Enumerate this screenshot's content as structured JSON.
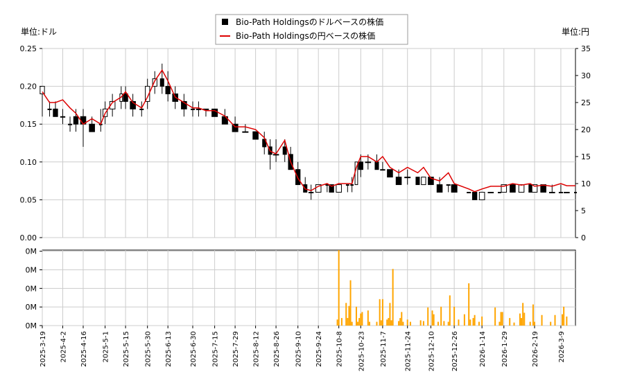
{
  "chart_data": [
    {
      "type": "candlestick+line",
      "legend": {
        "placement": "top-center",
        "entries": [
          {
            "label": "Bio-Path Holdingsのドルベースの株価",
            "color": "#000000",
            "marker": "square"
          },
          {
            "label": "Bio-Path Holdingsの円ベースの株価",
            "color": "#dd0000",
            "marker": "line"
          }
        ]
      },
      "left_axis": {
        "unit_label": "単位:ドル",
        "ylim": [
          0,
          0.25
        ],
        "ticks": [
          "0.00",
          "0.05",
          "0.10",
          "0.15",
          "0.20",
          "0.25"
        ]
      },
      "right_axis": {
        "unit_label": "単位:円",
        "ylim": [
          0,
          35
        ],
        "ticks": [
          "0",
          "5",
          "10",
          "15",
          "20",
          "25",
          "30",
          "35"
        ]
      },
      "grid": true,
      "x_range": [
        "2025-03-19",
        "2026-03-19"
      ],
      "x_ticks": [
        "2025-3-19",
        "2025-4-2",
        "2025-4-16",
        "2025-5-1",
        "2025-5-15",
        "2025-5-30",
        "2025-6-13",
        "2025-6-30",
        "2025-7-15",
        "2025-7-29",
        "2025-8-12",
        "2025-8-26",
        "2025-9-10",
        "2025-9-24",
        "2025-10-8",
        "2025-10-23",
        "2025-11-7",
        "2025-11-24",
        "2025-12-10",
        "2025-12-26",
        "2026-1-14",
        "2026-1-29",
        "2026-2-19",
        "2026-3-9"
      ],
      "usd_series": [
        [
          "2025-03-19",
          0.19,
          0.2,
          0.16,
          0.2
        ],
        [
          "2025-03-24",
          0.17,
          0.18,
          0.16,
          0.17
        ],
        [
          "2025-03-28",
          0.17,
          0.18,
          0.16,
          0.16
        ],
        [
          "2025-04-02",
          0.16,
          0.17,
          0.15,
          0.16
        ],
        [
          "2025-04-07",
          0.15,
          0.16,
          0.14,
          0.15
        ],
        [
          "2025-04-11",
          0.16,
          0.17,
          0.14,
          0.15
        ],
        [
          "2025-04-16",
          0.16,
          0.17,
          0.12,
          0.15
        ],
        [
          "2025-04-22",
          0.15,
          0.16,
          0.14,
          0.14
        ],
        [
          "2025-04-28",
          0.15,
          0.17,
          0.14,
          0.15
        ],
        [
          "2025-05-01",
          0.16,
          0.18,
          0.15,
          0.17
        ],
        [
          "2025-05-06",
          0.17,
          0.19,
          0.16,
          0.18
        ],
        [
          "2025-05-12",
          0.18,
          0.2,
          0.17,
          0.19
        ],
        [
          "2025-05-15",
          0.19,
          0.2,
          0.17,
          0.18
        ],
        [
          "2025-05-20",
          0.18,
          0.19,
          0.16,
          0.17
        ],
        [
          "2025-05-26",
          0.17,
          0.18,
          0.16,
          0.17
        ],
        [
          "2025-05-30",
          0.18,
          0.21,
          0.17,
          0.2
        ],
        [
          "2025-06-04",
          0.2,
          0.22,
          0.19,
          0.21
        ],
        [
          "2025-06-09",
          0.21,
          0.23,
          0.19,
          0.2
        ],
        [
          "2025-06-13",
          0.2,
          0.22,
          0.18,
          0.19
        ],
        [
          "2025-06-18",
          0.19,
          0.2,
          0.17,
          0.18
        ],
        [
          "2025-06-24",
          0.18,
          0.19,
          0.16,
          0.17
        ],
        [
          "2025-06-30",
          0.17,
          0.18,
          0.16,
          0.17
        ],
        [
          "2025-07-04",
          0.17,
          0.18,
          0.16,
          0.17
        ],
        [
          "2025-07-09",
          0.17,
          0.17,
          0.16,
          0.17
        ],
        [
          "2025-07-15",
          0.17,
          0.17,
          0.16,
          0.16
        ],
        [
          "2025-07-22",
          0.16,
          0.17,
          0.15,
          0.15
        ],
        [
          "2025-07-29",
          0.15,
          0.16,
          0.14,
          0.14
        ],
        [
          "2025-08-05",
          0.14,
          0.15,
          0.14,
          0.14
        ],
        [
          "2025-08-12",
          0.14,
          0.14,
          0.13,
          0.13
        ],
        [
          "2025-08-18",
          0.13,
          0.14,
          0.11,
          0.12
        ],
        [
          "2025-08-22",
          0.12,
          0.13,
          0.09,
          0.11
        ],
        [
          "2025-08-26",
          0.11,
          0.13,
          0.1,
          0.11
        ],
        [
          "2025-09-01",
          0.12,
          0.13,
          0.1,
          0.11
        ],
        [
          "2025-09-05",
          0.11,
          0.12,
          0.09,
          0.09
        ],
        [
          "2025-09-10",
          0.09,
          0.1,
          0.07,
          0.07
        ],
        [
          "2025-09-15",
          0.07,
          0.08,
          0.06,
          0.06
        ],
        [
          "2025-09-19",
          0.06,
          0.07,
          0.05,
          0.06
        ],
        [
          "2025-09-24",
          0.06,
          0.07,
          0.06,
          0.07
        ],
        [
          "2025-09-30",
          0.07,
          0.07,
          0.06,
          0.07
        ],
        [
          "2025-10-03",
          0.07,
          0.07,
          0.06,
          0.06
        ],
        [
          "2025-10-08",
          0.06,
          0.07,
          0.06,
          0.07
        ],
        [
          "2025-10-14",
          0.07,
          0.07,
          0.06,
          0.07
        ],
        [
          "2025-10-17",
          0.07,
          0.08,
          0.06,
          0.07
        ],
        [
          "2025-10-20",
          0.07,
          0.1,
          0.07,
          0.1
        ],
        [
          "2025-10-23",
          0.1,
          0.11,
          0.08,
          0.09
        ],
        [
          "2025-10-28",
          0.1,
          0.11,
          0.09,
          0.1
        ],
        [
          "2025-11-03",
          0.1,
          0.11,
          0.09,
          0.09
        ],
        [
          "2025-11-07",
          0.09,
          0.1,
          0.09,
          0.09
        ],
        [
          "2025-11-12",
          0.09,
          0.09,
          0.08,
          0.08
        ],
        [
          "2025-11-18",
          0.08,
          0.09,
          0.07,
          0.07
        ],
        [
          "2025-11-24",
          0.08,
          0.09,
          0.07,
          0.08
        ],
        [
          "2025-12-01",
          0.08,
          0.08,
          0.07,
          0.07
        ],
        [
          "2025-12-05",
          0.07,
          0.08,
          0.07,
          0.08
        ],
        [
          "2025-12-10",
          0.08,
          0.08,
          0.07,
          0.07
        ],
        [
          "2025-12-16",
          0.07,
          0.08,
          0.06,
          0.06
        ],
        [
          "2025-12-22",
          0.07,
          0.07,
          0.06,
          0.07
        ],
        [
          "2025-12-26",
          0.07,
          0.07,
          0.06,
          0.06
        ],
        [
          "2026-01-05",
          0.06,
          0.06,
          0.06,
          0.06
        ],
        [
          "2026-01-09",
          0.06,
          0.06,
          0.05,
          0.05
        ],
        [
          "2026-01-14",
          0.05,
          0.06,
          0.05,
          0.06
        ],
        [
          "2026-01-20",
          0.06,
          0.06,
          0.06,
          0.06
        ],
        [
          "2026-01-26",
          0.06,
          0.06,
          0.06,
          0.06
        ],
        [
          "2026-01-29",
          0.06,
          0.07,
          0.06,
          0.07
        ],
        [
          "2026-02-04",
          0.07,
          0.07,
          0.06,
          0.06
        ],
        [
          "2026-02-10",
          0.06,
          0.07,
          0.06,
          0.07
        ],
        [
          "2026-02-16",
          0.07,
          0.07,
          0.06,
          0.06
        ],
        [
          "2026-02-19",
          0.06,
          0.07,
          0.06,
          0.07
        ],
        [
          "2026-02-25",
          0.07,
          0.07,
          0.06,
          0.06
        ],
        [
          "2026-03-03",
          0.06,
          0.07,
          0.06,
          0.06
        ],
        [
          "2026-03-09",
          0.06,
          0.07,
          0.06,
          0.06
        ],
        [
          "2026-03-13",
          0.06,
          0.06,
          0.06,
          0.06
        ],
        [
          "2026-03-19",
          0.06,
          0.06,
          0.06,
          0.06
        ]
      ],
      "jpy_series": [
        [
          "2025-03-19",
          27
        ],
        [
          "2025-03-24",
          25
        ],
        [
          "2025-03-28",
          25
        ],
        [
          "2025-04-02",
          25.5
        ],
        [
          "2025-04-07",
          24
        ],
        [
          "2025-04-11",
          23
        ],
        [
          "2025-04-16",
          21
        ],
        [
          "2025-04-22",
          22
        ],
        [
          "2025-04-28",
          21
        ],
        [
          "2025-05-01",
          23
        ],
        [
          "2025-05-06",
          25
        ],
        [
          "2025-05-12",
          26
        ],
        [
          "2025-05-15",
          27
        ],
        [
          "2025-05-20",
          25
        ],
        [
          "2025-05-26",
          24
        ],
        [
          "2025-05-30",
          26
        ],
        [
          "2025-06-04",
          29
        ],
        [
          "2025-06-09",
          31
        ],
        [
          "2025-06-13",
          29
        ],
        [
          "2025-06-18",
          26
        ],
        [
          "2025-06-24",
          25
        ],
        [
          "2025-06-30",
          24
        ],
        [
          "2025-07-04",
          24
        ],
        [
          "2025-07-09",
          23.5
        ],
        [
          "2025-07-15",
          23.5
        ],
        [
          "2025-07-22",
          22.5
        ],
        [
          "2025-07-29",
          20.5
        ],
        [
          "2025-08-05",
          20.5
        ],
        [
          "2025-08-12",
          20
        ],
        [
          "2025-08-18",
          18.5
        ],
        [
          "2025-08-22",
          16
        ],
        [
          "2025-08-26",
          15.5
        ],
        [
          "2025-09-01",
          18
        ],
        [
          "2025-09-05",
          14
        ],
        [
          "2025-09-10",
          11
        ],
        [
          "2025-09-15",
          9
        ],
        [
          "2025-09-19",
          8.7
        ],
        [
          "2025-09-24",
          9.5
        ],
        [
          "2025-09-30",
          10
        ],
        [
          "2025-10-03",
          9.5
        ],
        [
          "2025-10-08",
          10
        ],
        [
          "2025-10-14",
          10
        ],
        [
          "2025-10-17",
          10
        ],
        [
          "2025-10-20",
          13
        ],
        [
          "2025-10-23",
          15
        ],
        [
          "2025-10-28",
          15
        ],
        [
          "2025-11-03",
          14
        ],
        [
          "2025-11-07",
          15
        ],
        [
          "2025-11-12",
          13
        ],
        [
          "2025-11-18",
          12
        ],
        [
          "2025-11-24",
          13
        ],
        [
          "2025-12-01",
          12
        ],
        [
          "2025-12-05",
          13
        ],
        [
          "2025-12-10",
          11
        ],
        [
          "2025-12-16",
          10.5
        ],
        [
          "2025-12-22",
          12
        ],
        [
          "2025-12-26",
          10
        ],
        [
          "2026-01-05",
          9
        ],
        [
          "2026-01-09",
          8.5
        ],
        [
          "2026-01-14",
          9
        ],
        [
          "2026-01-20",
          9.5
        ],
        [
          "2026-01-26",
          9.5
        ],
        [
          "2026-01-29",
          9.5
        ],
        [
          "2026-02-04",
          10
        ],
        [
          "2026-02-10",
          9.7
        ],
        [
          "2026-02-16",
          10
        ],
        [
          "2026-02-19",
          9.5
        ],
        [
          "2026-02-25",
          9.7
        ],
        [
          "2026-03-03",
          9.5
        ],
        [
          "2026-03-09",
          10
        ],
        [
          "2026-03-13",
          9.6
        ],
        [
          "2026-03-19",
          9.6
        ]
      ],
      "line_color": "#dd0000",
      "candle_color": "#000000"
    },
    {
      "type": "bar",
      "title": "",
      "ylim": [
        0,
        1
      ],
      "y_ticks": [
        "0M",
        "0M",
        "0M",
        "0M",
        "0M"
      ],
      "bar_color": "#ffa500",
      "grid": true,
      "volumes": [
        [
          "2025-10-07",
          0.08
        ],
        [
          "2025-10-08",
          1.0
        ],
        [
          "2025-10-10",
          0.1
        ],
        [
          "2025-10-13",
          0.3
        ],
        [
          "2025-10-14",
          0.1
        ],
        [
          "2025-10-15",
          0.26
        ],
        [
          "2025-10-16",
          0.6
        ],
        [
          "2025-10-17",
          0.05
        ],
        [
          "2025-10-20",
          0.25
        ],
        [
          "2025-10-21",
          0.05
        ],
        [
          "2025-10-22",
          0.1
        ],
        [
          "2025-10-23",
          0.16
        ],
        [
          "2025-10-24",
          0.18
        ],
        [
          "2025-10-28",
          0.2
        ],
        [
          "2025-10-29",
          0.05
        ],
        [
          "2025-11-03",
          0.05
        ],
        [
          "2025-11-05",
          0.35
        ],
        [
          "2025-11-06",
          0.07
        ],
        [
          "2025-11-07",
          0.35
        ],
        [
          "2025-11-10",
          0.08
        ],
        [
          "2025-11-11",
          0.1
        ],
        [
          "2025-11-12",
          0.3
        ],
        [
          "2025-11-13",
          0.07
        ],
        [
          "2025-11-14",
          0.75
        ],
        [
          "2025-11-18",
          0.06
        ],
        [
          "2025-11-19",
          0.1
        ],
        [
          "2025-11-20",
          0.18
        ],
        [
          "2025-11-21",
          0.05
        ],
        [
          "2025-11-24",
          0.08
        ],
        [
          "2025-11-26",
          0.05
        ],
        [
          "2025-12-03",
          0.07
        ],
        [
          "2025-12-05",
          0.06
        ],
        [
          "2025-12-08",
          0.24
        ],
        [
          "2025-12-11",
          0.2
        ],
        [
          "2025-12-12",
          0.15
        ],
        [
          "2025-12-15",
          0.05
        ],
        [
          "2025-12-17",
          0.25
        ],
        [
          "2025-12-19",
          0.06
        ],
        [
          "2025-12-22",
          0.05
        ],
        [
          "2025-12-23",
          0.4
        ],
        [
          "2025-12-26",
          0.25
        ],
        [
          "2025-12-29",
          0.08
        ],
        [
          "2026-01-02",
          0.15
        ],
        [
          "2026-01-05",
          0.56
        ],
        [
          "2026-01-06",
          0.08
        ],
        [
          "2026-01-08",
          0.1
        ],
        [
          "2026-01-09",
          0.14
        ],
        [
          "2026-01-12",
          0.05
        ],
        [
          "2026-01-14",
          0.12
        ],
        [
          "2026-01-23",
          0.24
        ],
        [
          "2026-01-26",
          0.05
        ],
        [
          "2026-01-27",
          0.18
        ],
        [
          "2026-01-28",
          0.18
        ],
        [
          "2026-02-02",
          0.1
        ],
        [
          "2026-02-05",
          0.04
        ],
        [
          "2026-02-09",
          0.16
        ],
        [
          "2026-02-10",
          0.1
        ],
        [
          "2026-02-11",
          0.3
        ],
        [
          "2026-02-12",
          0.17
        ],
        [
          "2026-02-16",
          0.05
        ],
        [
          "2026-02-18",
          0.28
        ],
        [
          "2026-02-19",
          0.05
        ],
        [
          "2026-02-24",
          0.14
        ],
        [
          "2026-03-02",
          0.05
        ],
        [
          "2026-03-05",
          0.14
        ],
        [
          "2026-03-10",
          0.15
        ],
        [
          "2026-03-11",
          0.25
        ],
        [
          "2026-03-13",
          0.12
        ]
      ]
    }
  ]
}
